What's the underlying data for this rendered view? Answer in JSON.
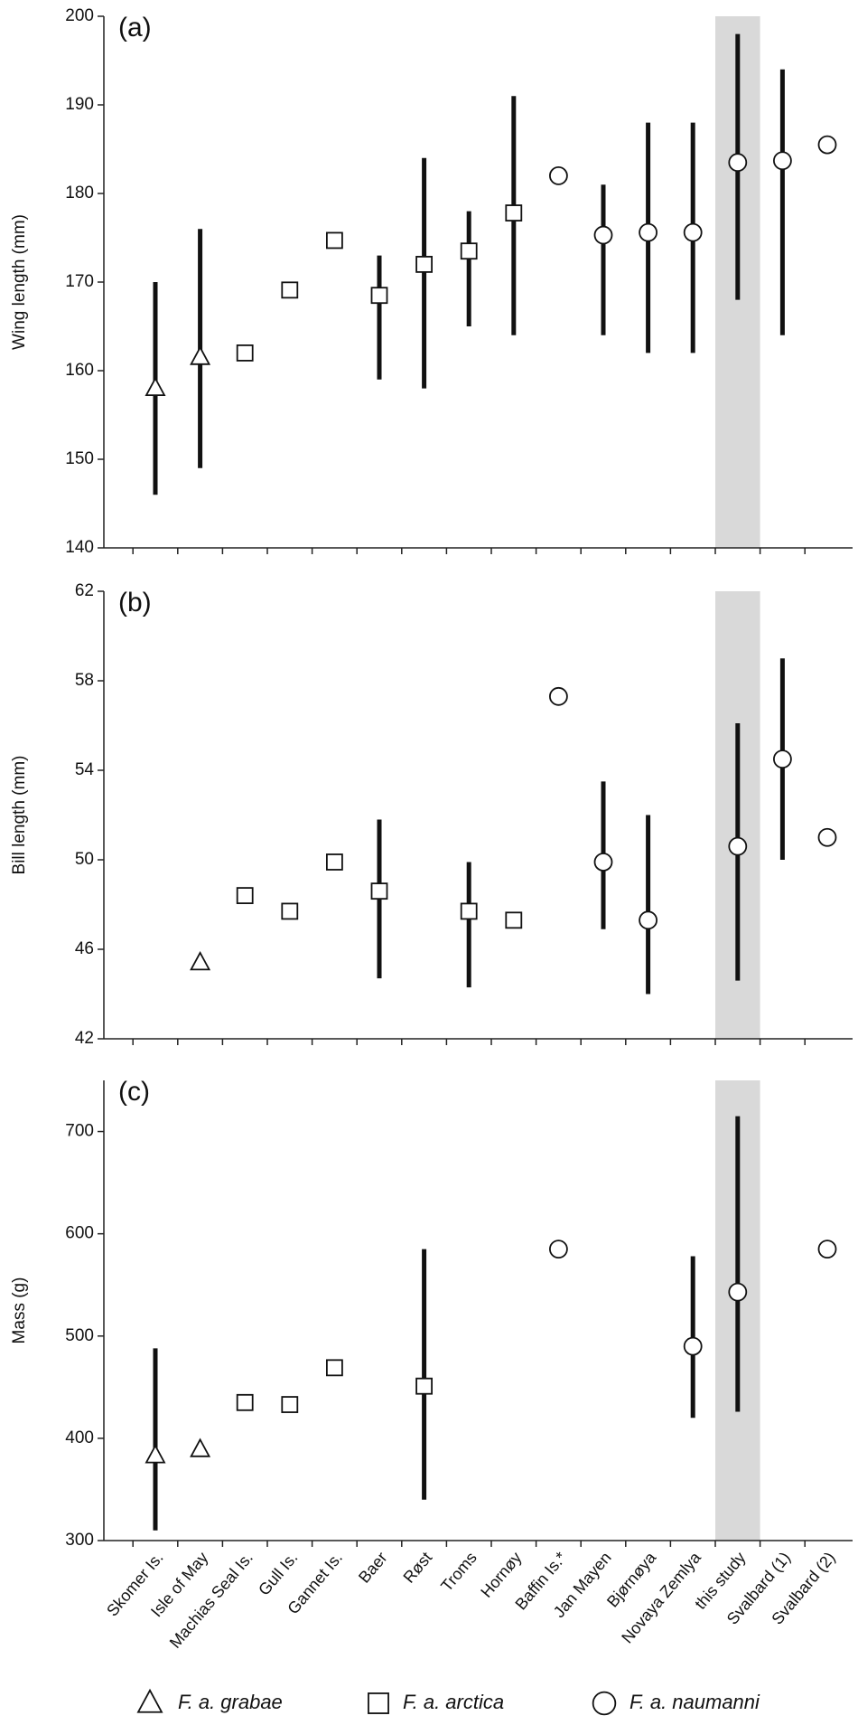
{
  "chart_data": [
    {
      "type": "dot-range",
      "title": "(a)",
      "ylabel": "Wing length (mm)",
      "ylim": [
        140,
        200
      ],
      "yticks": [
        140,
        150,
        160,
        170,
        180,
        190,
        200
      ],
      "highlight": 13,
      "highlight_color": "#d9d9d9",
      "values": [
        158,
        161.5,
        162,
        169.1,
        174.7,
        168.5,
        172,
        173.5,
        177.8,
        182,
        175.3,
        175.6,
        175.6,
        183.5,
        183.7,
        185.5
      ],
      "low": [
        146,
        149,
        null,
        null,
        null,
        159,
        158,
        165,
        164,
        null,
        164,
        162,
        162,
        168,
        164,
        null
      ],
      "high": [
        170,
        176,
        null,
        null,
        null,
        173,
        184,
        178,
        191,
        null,
        181,
        188,
        188,
        198,
        194,
        null
      ]
    },
    {
      "type": "dot-range",
      "title": "(b)",
      "ylabel": "Bill length (mm)",
      "ylim": [
        42,
        62
      ],
      "yticks": [
        42,
        46,
        50,
        54,
        58,
        62
      ],
      "highlight": 13,
      "highlight_color": "#d9d9d9",
      "values": [
        null,
        45.4,
        48.4,
        47.7,
        49.9,
        48.6,
        null,
        47.7,
        47.3,
        57.3,
        49.9,
        47.3,
        null,
        50.6,
        54.5,
        51.0
      ],
      "low": [
        null,
        null,
        null,
        null,
        null,
        44.7,
        null,
        44.3,
        null,
        null,
        46.9,
        44.0,
        null,
        44.6,
        50.0,
        null
      ],
      "high": [
        null,
        null,
        null,
        null,
        null,
        51.8,
        null,
        49.9,
        null,
        null,
        53.5,
        52.0,
        null,
        56.1,
        59.0,
        null
      ]
    },
    {
      "type": "dot-range",
      "title": "(c)",
      "ylabel": "Mass (g)",
      "ylim": [
        300,
        750
      ],
      "yticks": [
        300,
        400,
        500,
        600,
        700
      ],
      "highlight": 13,
      "highlight_color": "#d9d9d9",
      "values": [
        383,
        389,
        435,
        433,
        469,
        null,
        451,
        null,
        null,
        585,
        null,
        null,
        490,
        543,
        null,
        585
      ],
      "low": [
        310,
        null,
        null,
        null,
        null,
        null,
        340,
        null,
        null,
        null,
        null,
        null,
        420,
        426,
        null,
        null
      ],
      "high": [
        488,
        null,
        null,
        null,
        null,
        null,
        585,
        null,
        null,
        null,
        null,
        null,
        578,
        715,
        null,
        null
      ],
      "categories": [
        "Skomer Is.",
        "Isle of May",
        "Machias Seal Is.",
        "Gull Is.",
        "Gannet Is.",
        "Baer",
        "Røst",
        "Troms",
        "Hornøy",
        "Baffin Is.*",
        "Jan Mayen",
        "Bjørnøya",
        "Novaya Zemlya",
        "this study",
        "Svalbard (1)",
        "Svalbard (2)"
      ],
      "subspecies": [
        0,
        0,
        1,
        1,
        1,
        1,
        1,
        1,
        1,
        2,
        2,
        2,
        2,
        2,
        2,
        2
      ],
      "legend": [
        {
          "name": "F. a. grabae",
          "marker": "triangle"
        },
        {
          "name": "F. a. arctica",
          "marker": "square"
        },
        {
          "name": "F. a. naumanni",
          "marker": "circle"
        }
      ]
    }
  ]
}
